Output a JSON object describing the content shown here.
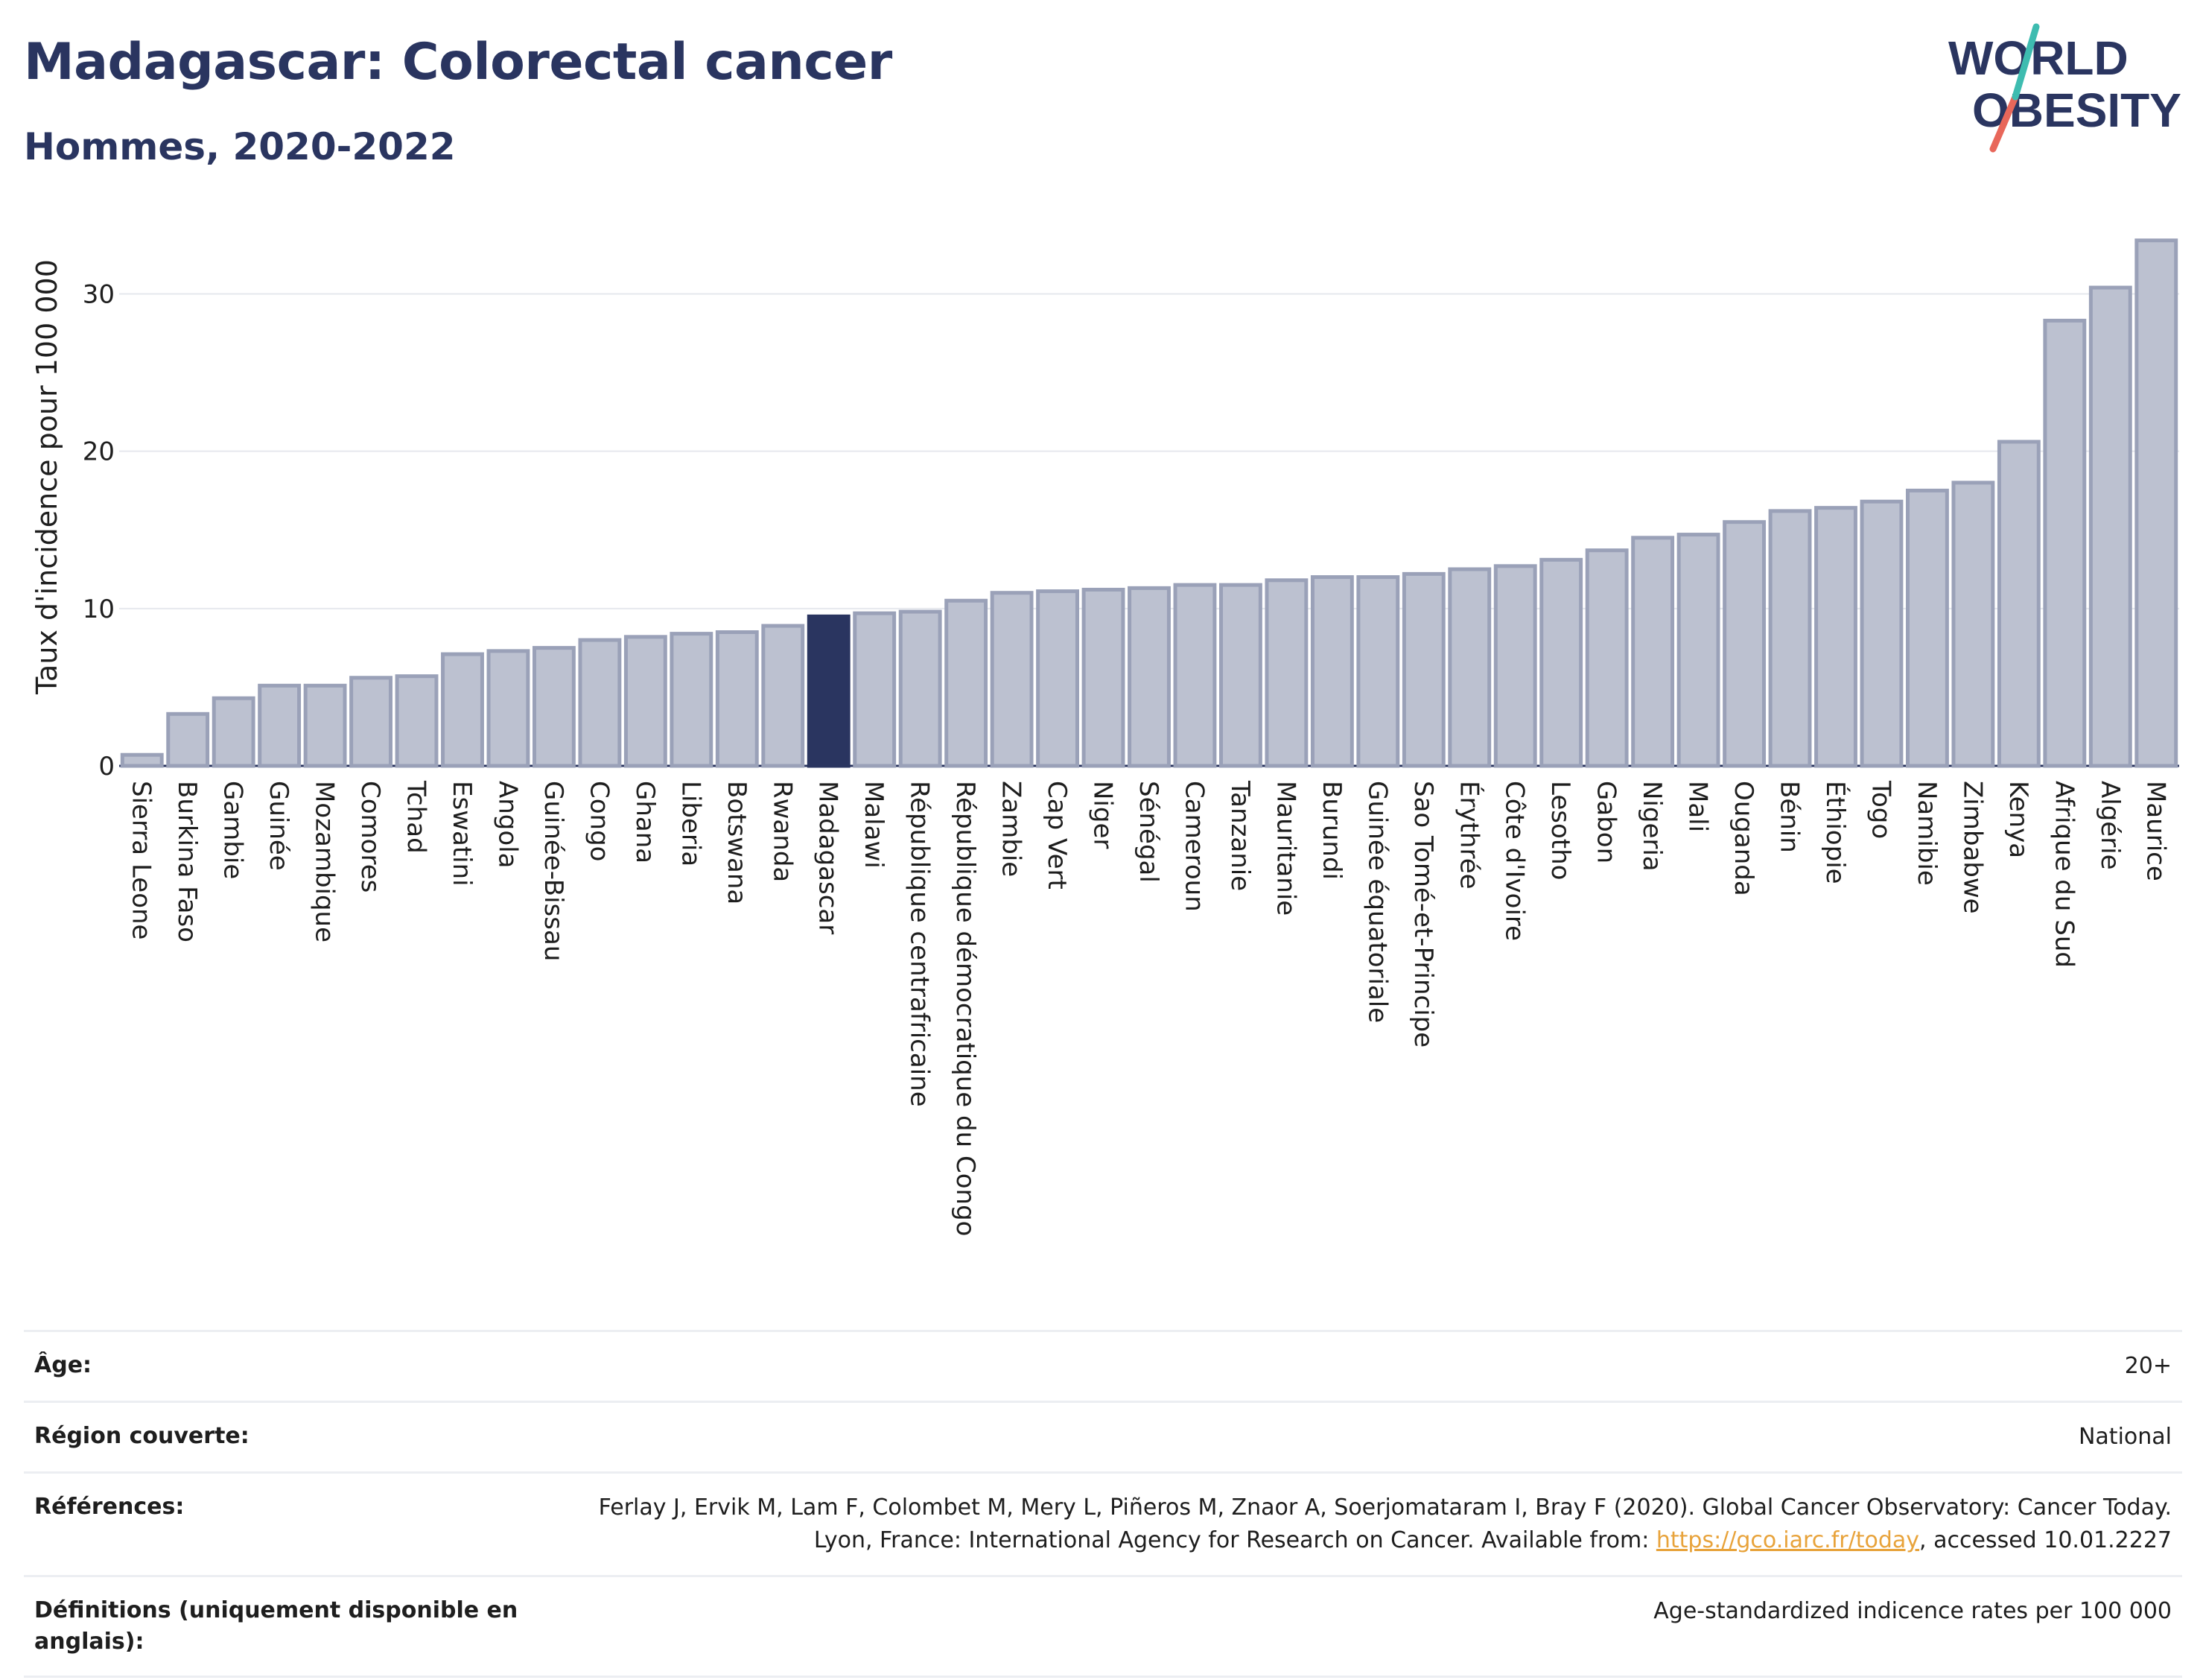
{
  "header": {
    "title": "Madagascar: Colorectal cancer",
    "subtitle": "Hommes, 2020-2022"
  },
  "logo": {
    "line1": "WORLD",
    "line2": "OBESITY"
  },
  "colors": {
    "highlight": "#2a3560",
    "bar": "#bcc1d0",
    "bar_stroke": "#9aa1b8",
    "link": "#e8a33b"
  },
  "chart_data": {
    "type": "bar",
    "ylabel": "Taux d'incidence pour 100 000",
    "ylim": [
      0,
      34
    ],
    "yticks": [
      0,
      10,
      20,
      30
    ],
    "grid": true,
    "highlight": "Madagascar",
    "categories": [
      "Sierra Leone",
      "Burkina Faso",
      "Gambie",
      "Guinée",
      "Mozambique",
      "Comores",
      "Tchad",
      "Eswatini",
      "Angola",
      "Guinée-Bissau",
      "Congo",
      "Ghana",
      "Liberia",
      "Botswana",
      "Rwanda",
      "Madagascar",
      "Malawi",
      "République centrafricaine",
      "République démocratique du Congo",
      "Zambie",
      "Cap Vert",
      "Niger",
      "Sénégal",
      "Cameroun",
      "Tanzanie",
      "Mauritanie",
      "Burundi",
      "Guinée équatoriale",
      "Sao Tomé-et-Principe",
      "Érythrée",
      "Côte d'Ivoire",
      "Lesotho",
      "Gabon",
      "Nigeria",
      "Mali",
      "Ouganda",
      "Bénin",
      "Éthiopie",
      "Togo",
      "Namibie",
      "Zimbabwe",
      "Kenya",
      "Afrique du Sud",
      "Algérie",
      "Maurice"
    ],
    "values": [
      0.7,
      3.3,
      4.3,
      5.1,
      5.1,
      5.6,
      5.7,
      7.1,
      7.3,
      7.5,
      8.0,
      8.2,
      8.4,
      8.5,
      8.9,
      9.5,
      9.7,
      9.8,
      10.5,
      11.0,
      11.1,
      11.2,
      11.3,
      11.5,
      11.5,
      11.8,
      12.0,
      12.0,
      12.2,
      12.5,
      12.7,
      13.1,
      13.7,
      14.5,
      14.7,
      15.5,
      16.2,
      16.4,
      16.8,
      17.5,
      18.0,
      20.6,
      28.3,
      30.4,
      33.4
    ]
  },
  "info": [
    {
      "label": "Âge:",
      "value": "20+"
    },
    {
      "label": "Région couverte:",
      "value": "National"
    },
    {
      "label": "Références:",
      "value_pre": "Ferlay J, Ervik M, Lam F, Colombet M, Mery L, Piñeros M, Znaor A, Soerjomataram I, Bray F (2020). Global Cancer Observatory: Cancer Today. Lyon, France: International Agency for Research on Cancer. Available from: ",
      "link": "https://gco.iarc.fr/today",
      "value_post": ", accessed 10.01.2227"
    },
    {
      "label": "Définitions (uniquement disponible en anglais):",
      "value": "Age-standardized indicence rates per 100 000"
    }
  ]
}
